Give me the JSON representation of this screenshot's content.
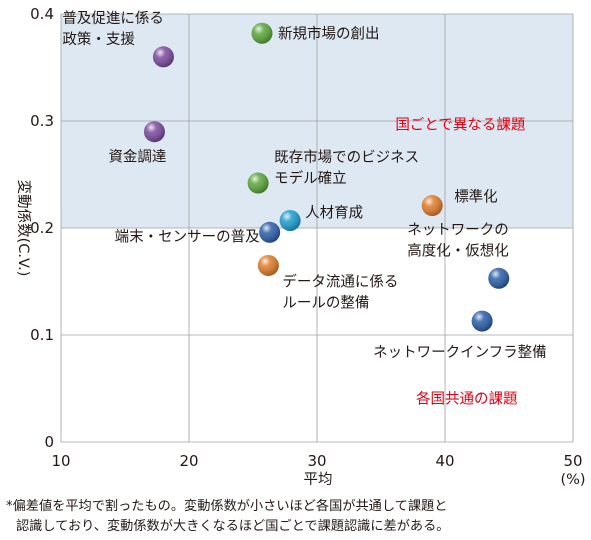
{
  "chart_data": {
    "type": "scatter",
    "xlabel": "平均",
    "xunit": "(%)",
    "ylabel": "変動係数(C.V.)",
    "xlim": [
      10,
      50
    ],
    "ylim": [
      0,
      0.4
    ],
    "x_ticks": [
      "10",
      "20",
      "30",
      "40",
      "50"
    ],
    "y_ticks": [
      "0",
      "0.1",
      "0.2",
      "0.3",
      "0.4"
    ],
    "grid": true,
    "shaded_region": {
      "x": [
        10,
        50
      ],
      "y": [
        0.2,
        0.4
      ],
      "color": "#dde8f2"
    },
    "region_labels": [
      {
        "text": "国ごとで異なる課題",
        "x": 41.2,
        "y": 0.292
      },
      {
        "text": "各国共通の課題",
        "x": 41.7,
        "y": 0.036
      }
    ],
    "points": [
      {
        "label": [
          "普及促進に係る",
          "政策・支援"
        ],
        "x": 18.0,
        "y": 0.36,
        "color": "#7b4a9c"
      },
      {
        "label": [
          "新規市場の創出"
        ],
        "x": 25.7,
        "y": 0.382,
        "color": "#5aa63a"
      },
      {
        "label": [
          "資金調達"
        ],
        "x": 17.3,
        "y": 0.29,
        "color": "#7b4a9c"
      },
      {
        "label": [
          "既存市場でのビジネス",
          "モデル確立"
        ],
        "x": 25.4,
        "y": 0.242,
        "color": "#5aa63a"
      },
      {
        "label": [
          "標準化"
        ],
        "x": 39.0,
        "y": 0.221,
        "color": "#e07b2a"
      },
      {
        "label": [
          "人材育成"
        ],
        "x": 27.9,
        "y": 0.207,
        "color": "#1e9ccf"
      },
      {
        "label": [
          "端末・センサーの普及"
        ],
        "x": 26.3,
        "y": 0.196,
        "color": "#2a5ea8"
      },
      {
        "label": [
          "ネットワークの",
          "高度化・仮想化"
        ],
        "x": 44.2,
        "y": 0.153,
        "color": "#2a5ea8"
      },
      {
        "label": [
          "データ流通に係る",
          "ルールの整備"
        ],
        "x": 26.2,
        "y": 0.165,
        "color": "#e07b2a"
      },
      {
        "label": [
          "ネットワークインフラ整備"
        ],
        "x": 42.9,
        "y": 0.113,
        "color": "#2a5ea8"
      }
    ]
  },
  "footnote": {
    "line1": "*偏差値を平均で割ったもの。変動係数が小さいほど各国が共通して課題と",
    "line2": "認識しており、変動係数が大きくなるほど国ごとで課題認識に差がある。"
  }
}
